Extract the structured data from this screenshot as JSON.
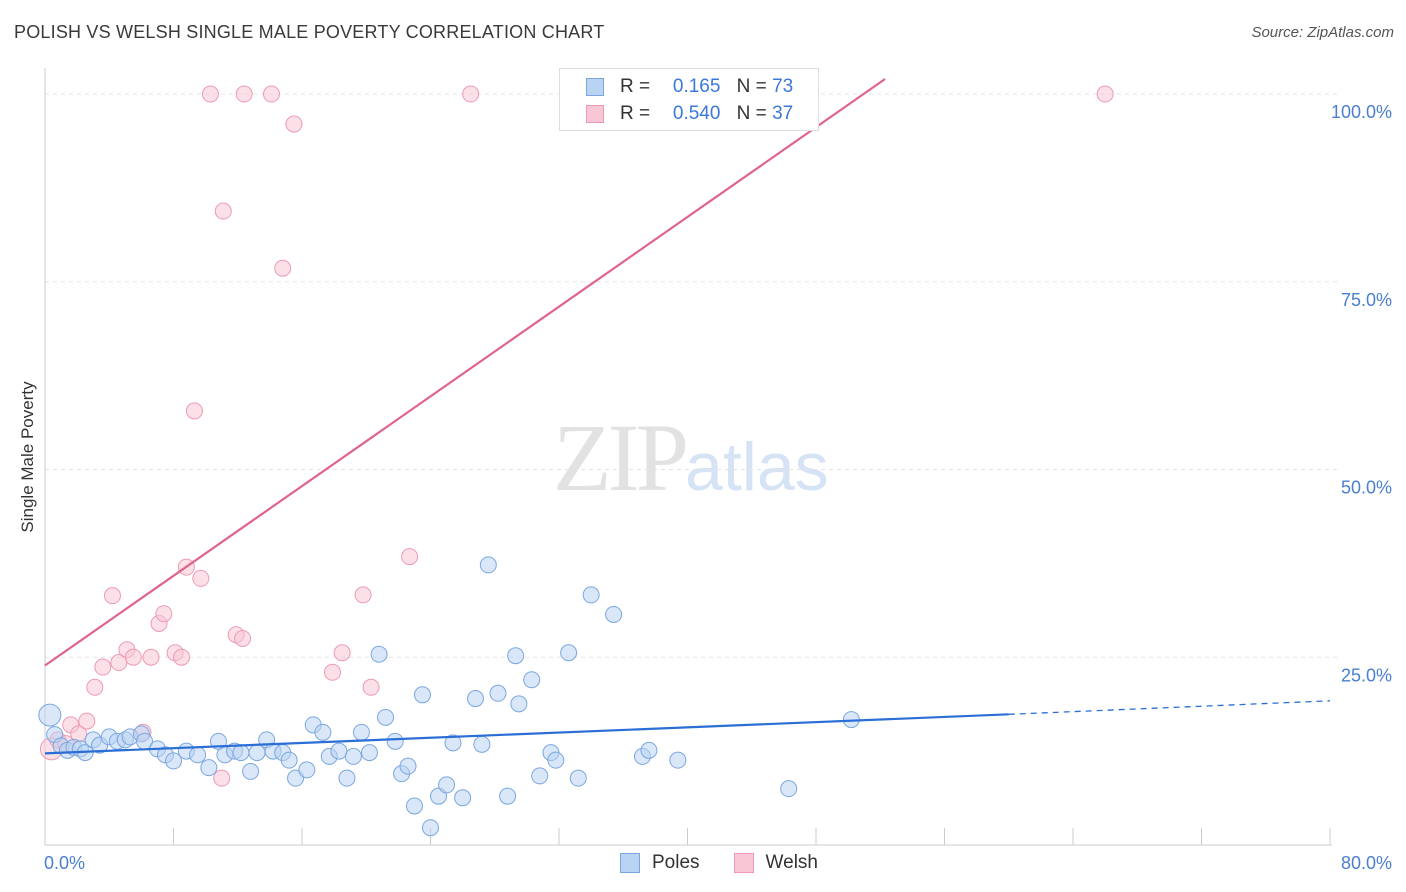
{
  "header": {
    "title": "POLISH VS WELSH SINGLE MALE POVERTY CORRELATION CHART",
    "source": "Source: ZipAtlas.com"
  },
  "watermark": {
    "zip": "ZIP",
    "atlas": "atlas"
  },
  "legend": {
    "poles": {
      "r_label": "R =",
      "r_value": "0.165",
      "n_label": "N =",
      "n_value": "73"
    },
    "welsh": {
      "r_label": "R =",
      "r_value": "0.540",
      "n_label": "N =",
      "n_value": "37"
    }
  },
  "bottom_legend": {
    "poles": "Poles",
    "welsh": "Welsh"
  },
  "colors": {
    "poles_fill": "#b9d3f3",
    "poles_stroke": "#7aa7e0",
    "poles_line": "#2a6ed6",
    "welsh_fill": "#f8c6d5",
    "welsh_stroke": "#ee9ab4",
    "welsh_line": "#e0648c",
    "tick_label": "#4a7fd0",
    "grid": "#e3e3e3"
  },
  "chart_data": {
    "type": "scatter",
    "title": "POLISH VS WELSH SINGLE MALE POVERTY CORRELATION CHART",
    "xlabel": "",
    "ylabel": "Single Male Poverty",
    "xlim": [
      0,
      80
    ],
    "ylim": [
      0,
      102
    ],
    "x_tick_labels": [
      "0.0%",
      "80.0%"
    ],
    "y_ticks": [
      25,
      50,
      75,
      100
    ],
    "y_tick_labels": [
      "25.0%",
      "50.0%",
      "75.0%",
      "100.0%"
    ],
    "grid": "horizontal dashed",
    "legend_position": "top-center",
    "series": [
      {
        "name": "Poles",
        "points": [
          [
            0.3,
            17.3
          ],
          [
            0.6,
            14.7
          ],
          [
            1.0,
            13.2
          ],
          [
            1.4,
            12.6
          ],
          [
            1.8,
            13.0
          ],
          [
            2.2,
            12.8
          ],
          [
            2.5,
            12.3
          ],
          [
            3.0,
            14.0
          ],
          [
            3.4,
            13.3
          ],
          [
            4.0,
            14.4
          ],
          [
            4.5,
            13.8
          ],
          [
            5.0,
            14.0
          ],
          [
            5.3,
            14.4
          ],
          [
            6.0,
            14.8
          ],
          [
            6.2,
            13.8
          ],
          [
            7.0,
            12.8
          ],
          [
            7.5,
            12.0
          ],
          [
            8.0,
            11.2
          ],
          [
            8.8,
            12.5
          ],
          [
            9.5,
            12.0
          ],
          [
            10.2,
            10.3
          ],
          [
            10.8,
            13.8
          ],
          [
            11.2,
            12.0
          ],
          [
            11.8,
            12.5
          ],
          [
            12.2,
            12.3
          ],
          [
            12.8,
            9.8
          ],
          [
            13.2,
            12.3
          ],
          [
            13.8,
            14.0
          ],
          [
            14.2,
            12.5
          ],
          [
            14.8,
            12.3
          ],
          [
            15.2,
            11.3
          ],
          [
            15.6,
            8.9
          ],
          [
            16.3,
            10.0
          ],
          [
            16.7,
            16.0
          ],
          [
            17.3,
            15.0
          ],
          [
            17.7,
            11.8
          ],
          [
            18.3,
            12.5
          ],
          [
            18.8,
            8.9
          ],
          [
            19.2,
            11.8
          ],
          [
            19.7,
            15.0
          ],
          [
            20.2,
            12.3
          ],
          [
            20.8,
            25.4
          ],
          [
            21.2,
            17.0
          ],
          [
            21.8,
            13.8
          ],
          [
            22.2,
            9.5
          ],
          [
            22.6,
            10.5
          ],
          [
            23.0,
            5.2
          ],
          [
            23.5,
            20.0
          ],
          [
            24.0,
            2.3
          ],
          [
            24.5,
            6.5
          ],
          [
            25.0,
            8.0
          ],
          [
            25.4,
            13.6
          ],
          [
            26.0,
            6.3
          ],
          [
            26.8,
            19.5
          ],
          [
            27.2,
            13.4
          ],
          [
            27.6,
            37.3
          ],
          [
            28.2,
            20.2
          ],
          [
            28.8,
            6.5
          ],
          [
            29.3,
            25.2
          ],
          [
            29.5,
            18.8
          ],
          [
            30.3,
            22.0
          ],
          [
            30.8,
            9.2
          ],
          [
            31.5,
            12.3
          ],
          [
            31.8,
            11.3
          ],
          [
            32.6,
            25.6
          ],
          [
            33.2,
            8.9
          ],
          [
            34.0,
            33.3
          ],
          [
            35.4,
            30.7
          ],
          [
            37.2,
            11.8
          ],
          [
            37.6,
            12.6
          ],
          [
            39.4,
            11.3
          ],
          [
            46.3,
            7.5
          ],
          [
            50.2,
            16.7
          ]
        ]
      },
      {
        "name": "Welsh",
        "points": [
          [
            0.4,
            12.8
          ],
          [
            0.8,
            14.0
          ],
          [
            1.3,
            13.5
          ],
          [
            1.6,
            16.0
          ],
          [
            2.1,
            14.8
          ],
          [
            2.6,
            16.5
          ],
          [
            3.1,
            21.0
          ],
          [
            3.6,
            23.7
          ],
          [
            4.2,
            33.2
          ],
          [
            4.6,
            24.3
          ],
          [
            5.1,
            26.0
          ],
          [
            5.5,
            25.0
          ],
          [
            6.1,
            15.0
          ],
          [
            6.6,
            25.0
          ],
          [
            7.1,
            29.5
          ],
          [
            7.4,
            30.8
          ],
          [
            8.1,
            25.6
          ],
          [
            8.5,
            25.0
          ],
          [
            8.8,
            37.0
          ],
          [
            9.3,
            57.8
          ],
          [
            9.7,
            35.5
          ],
          [
            10.3,
            100
          ],
          [
            11.0,
            8.9
          ],
          [
            11.1,
            84.4
          ],
          [
            11.9,
            28.0
          ],
          [
            12.3,
            27.5
          ],
          [
            12.4,
            100
          ],
          [
            14.1,
            100
          ],
          [
            14.8,
            76.8
          ],
          [
            15.5,
            96.0
          ],
          [
            17.9,
            23.0
          ],
          [
            18.5,
            25.6
          ],
          [
            19.8,
            33.3
          ],
          [
            20.3,
            21.0
          ],
          [
            22.7,
            38.4
          ],
          [
            26.5,
            100
          ],
          [
            66.0,
            100
          ]
        ]
      }
    ],
    "trendlines": [
      {
        "series": "Poles",
        "x": [
          0,
          60
        ],
        "y": [
          12.2,
          17.4
        ],
        "dashed_extension": {
          "x": [
            60,
            80
          ],
          "y": [
            17.4,
            19.2
          ]
        }
      },
      {
        "series": "Welsh",
        "x": [
          0,
          52.3
        ],
        "y": [
          23.9,
          102
        ]
      }
    ]
  }
}
